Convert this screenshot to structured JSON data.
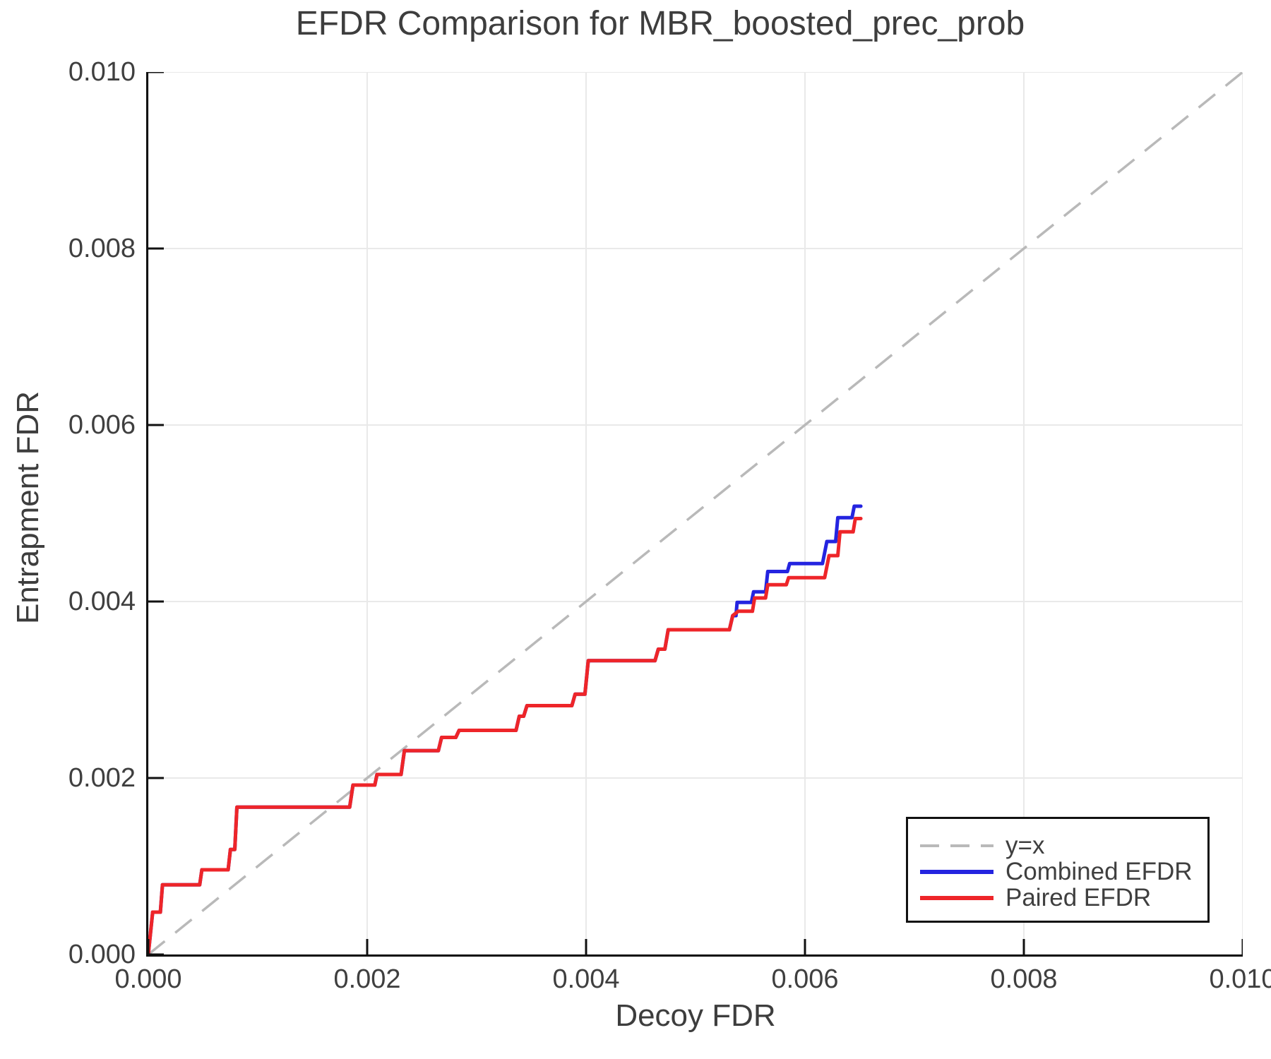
{
  "title": "EFDR Comparison for MBR_boosted_prec_prob",
  "legend": {
    "items": [
      {
        "label": "y=x"
      },
      {
        "label": "Combined EFDR"
      },
      {
        "label": "Paired EFDR"
      }
    ]
  },
  "colors": {
    "axis": "#111111",
    "grid": "#e9e9e9",
    "text": "#3f3f3f",
    "identity": "#b9b9b9",
    "combined": "#2424e0",
    "paired": "#ee2529"
  },
  "chart_data": {
    "type": "line",
    "title": "EFDR Comparison for MBR_boosted_prec_prob",
    "xlabel": "Decoy FDR",
    "ylabel": "Entrapment FDR",
    "xlim": [
      0.0,
      0.01
    ],
    "ylim": [
      0.0,
      0.01
    ],
    "grid": true,
    "legend_position": "lower right",
    "xticks": {
      "values": [
        0.0,
        0.002,
        0.004,
        0.006,
        0.008,
        0.01
      ],
      "labels": [
        "0.000",
        "0.002",
        "0.004",
        "0.006",
        "0.008",
        "0.010"
      ]
    },
    "yticks": {
      "values": [
        0.0,
        0.002,
        0.004,
        0.006,
        0.008,
        0.01
      ],
      "labels": [
        "0.000",
        "0.002",
        "0.004",
        "0.006",
        "0.008",
        "0.010"
      ]
    },
    "identity_line": {
      "label": "y=x",
      "style": "dashed",
      "color": "#b9b9b9",
      "from": [
        0.0,
        0.0
      ],
      "to": [
        0.01,
        0.01
      ]
    },
    "series": [
      {
        "name": "Combined EFDR",
        "color": "#2424e0",
        "points": [
          [
            0.0,
            0.0
          ],
          [
            4e-05,
            0.00048
          ],
          [
            0.00011,
            0.00048
          ],
          [
            0.00013,
            0.00079
          ],
          [
            0.00047,
            0.00079
          ],
          [
            0.00049,
            0.00096
          ],
          [
            0.00073,
            0.00096
          ],
          [
            0.00075,
            0.00119
          ],
          [
            0.00079,
            0.00119
          ],
          [
            0.00081,
            0.00167
          ],
          [
            0.00184,
            0.00167
          ],
          [
            0.00187,
            0.00192
          ],
          [
            0.00207,
            0.00192
          ],
          [
            0.00209,
            0.00204
          ],
          [
            0.00231,
            0.00204
          ],
          [
            0.00234,
            0.00231
          ],
          [
            0.00265,
            0.00231
          ],
          [
            0.00268,
            0.00246
          ],
          [
            0.00281,
            0.00246
          ],
          [
            0.00284,
            0.00254
          ],
          [
            0.00336,
            0.00254
          ],
          [
            0.00339,
            0.0027
          ],
          [
            0.00343,
            0.0027
          ],
          [
            0.00346,
            0.00282
          ],
          [
            0.00387,
            0.00282
          ],
          [
            0.0039,
            0.00295
          ],
          [
            0.00399,
            0.00295
          ],
          [
            0.00402,
            0.00333
          ],
          [
            0.00463,
            0.00333
          ],
          [
            0.00466,
            0.00346
          ],
          [
            0.00472,
            0.00346
          ],
          [
            0.00475,
            0.00368
          ],
          [
            0.00531,
            0.00368
          ],
          [
            0.00534,
            0.00384
          ],
          [
            0.00537,
            0.00384
          ],
          [
            0.00538,
            0.00399
          ],
          [
            0.00551,
            0.00399
          ],
          [
            0.00553,
            0.00411
          ],
          [
            0.00564,
            0.00411
          ],
          [
            0.00566,
            0.00434
          ],
          [
            0.00584,
            0.00434
          ],
          [
            0.00586,
            0.00443
          ],
          [
            0.00616,
            0.00443
          ],
          [
            0.0062,
            0.00468
          ],
          [
            0.00628,
            0.00468
          ],
          [
            0.0063,
            0.00495
          ],
          [
            0.00643,
            0.00495
          ],
          [
            0.00645,
            0.00508
          ],
          [
            0.00651,
            0.00508
          ]
        ]
      },
      {
        "name": "Paired EFDR",
        "color": "#ee2529",
        "points": [
          [
            0.0,
            0.0
          ],
          [
            4e-05,
            0.00048
          ],
          [
            0.00011,
            0.00048
          ],
          [
            0.00013,
            0.00079
          ],
          [
            0.00047,
            0.00079
          ],
          [
            0.00049,
            0.00096
          ],
          [
            0.00073,
            0.00096
          ],
          [
            0.00075,
            0.00119
          ],
          [
            0.00079,
            0.00119
          ],
          [
            0.00081,
            0.00167
          ],
          [
            0.00184,
            0.00167
          ],
          [
            0.00187,
            0.00192
          ],
          [
            0.00207,
            0.00192
          ],
          [
            0.00209,
            0.00204
          ],
          [
            0.00231,
            0.00204
          ],
          [
            0.00234,
            0.00231
          ],
          [
            0.00265,
            0.00231
          ],
          [
            0.00268,
            0.00246
          ],
          [
            0.00281,
            0.00246
          ],
          [
            0.00284,
            0.00254
          ],
          [
            0.00336,
            0.00254
          ],
          [
            0.00339,
            0.0027
          ],
          [
            0.00343,
            0.0027
          ],
          [
            0.00346,
            0.00282
          ],
          [
            0.00387,
            0.00282
          ],
          [
            0.0039,
            0.00295
          ],
          [
            0.00399,
            0.00295
          ],
          [
            0.00402,
            0.00333
          ],
          [
            0.00463,
            0.00333
          ],
          [
            0.00466,
            0.00346
          ],
          [
            0.00472,
            0.00346
          ],
          [
            0.00475,
            0.00368
          ],
          [
            0.00531,
            0.00368
          ],
          [
            0.00534,
            0.00384
          ],
          [
            0.00539,
            0.00389
          ],
          [
            0.00552,
            0.00389
          ],
          [
            0.00554,
            0.00404
          ],
          [
            0.00564,
            0.00404
          ],
          [
            0.00566,
            0.00419
          ],
          [
            0.00583,
            0.00419
          ],
          [
            0.00585,
            0.00427
          ],
          [
            0.00618,
            0.00427
          ],
          [
            0.00622,
            0.00452
          ],
          [
            0.0063,
            0.00452
          ],
          [
            0.00632,
            0.00479
          ],
          [
            0.00644,
            0.00479
          ],
          [
            0.00646,
            0.00494
          ],
          [
            0.00651,
            0.00494
          ]
        ]
      }
    ]
  }
}
